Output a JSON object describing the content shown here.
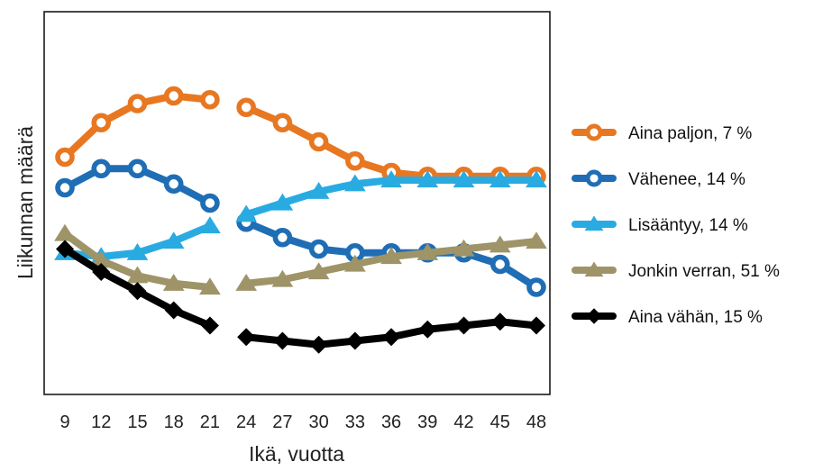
{
  "chart_data": {
    "type": "line",
    "xlabel": "Ikä, vuotta",
    "ylabel": "Liikunnan määrä",
    "x": [
      9,
      12,
      15,
      18,
      21,
      24,
      27,
      30,
      33,
      36,
      39,
      42,
      45,
      48
    ],
    "xlim": [
      9,
      48
    ],
    "ylim": [
      0,
      100
    ],
    "grid": false,
    "legend_position": "right",
    "series": [
      {
        "name": "Aina paljon, 7 %",
        "color": "#E87722",
        "marker": "ring",
        "values": [
          [
            9,
            62
          ],
          [
            12,
            71
          ],
          [
            15,
            76
          ],
          [
            18,
            78
          ],
          [
            21,
            77
          ],
          null,
          [
            24,
            75
          ],
          [
            27,
            71
          ],
          [
            30,
            66
          ],
          [
            33,
            61
          ],
          [
            36,
            58
          ],
          [
            39,
            57
          ],
          [
            42,
            57
          ],
          [
            45,
            57
          ],
          [
            48,
            57
          ]
        ]
      },
      {
        "name": "Vähenee, 14 %",
        "color": "#1F6EB5",
        "marker": "ring",
        "values": [
          [
            9,
            54
          ],
          [
            12,
            59
          ],
          [
            15,
            59
          ],
          [
            18,
            55
          ],
          [
            21,
            50
          ],
          null,
          [
            24,
            45
          ],
          [
            27,
            41
          ],
          [
            30,
            38
          ],
          [
            33,
            37
          ],
          [
            36,
            37
          ],
          [
            39,
            37
          ],
          [
            42,
            37
          ],
          [
            45,
            34
          ],
          [
            48,
            28
          ]
        ]
      },
      {
        "name": "Lisääntyy, 14 %",
        "color": "#29ABE2",
        "marker": "triangle",
        "values": [
          [
            9,
            37
          ],
          [
            12,
            36
          ],
          [
            15,
            37
          ],
          [
            18,
            40
          ],
          [
            21,
            44
          ],
          null,
          [
            24,
            47
          ],
          [
            27,
            50
          ],
          [
            30,
            53
          ],
          [
            33,
            55
          ],
          [
            36,
            56
          ],
          [
            39,
            56
          ],
          [
            42,
            56
          ],
          [
            45,
            56
          ],
          [
            48,
            56
          ]
        ]
      },
      {
        "name": "Jonkin verran, 51 %",
        "color": "#9E9468",
        "marker": "triangle",
        "values": [
          [
            9,
            42
          ],
          [
            12,
            35
          ],
          [
            15,
            31
          ],
          [
            18,
            29
          ],
          [
            21,
            28
          ],
          null,
          [
            24,
            29
          ],
          [
            27,
            30
          ],
          [
            30,
            32
          ],
          [
            33,
            34
          ],
          [
            36,
            36
          ],
          [
            39,
            37
          ],
          [
            42,
            38
          ],
          [
            45,
            39
          ],
          [
            48,
            40
          ]
        ]
      },
      {
        "name": "Aina vähän, 15 %",
        "color": "#000000",
        "marker": "diamond",
        "values": [
          [
            9,
            38
          ],
          [
            12,
            32
          ],
          [
            15,
            27
          ],
          [
            18,
            22
          ],
          [
            21,
            18
          ],
          null,
          [
            24,
            15
          ],
          [
            27,
            14
          ],
          [
            30,
            13
          ],
          [
            33,
            14
          ],
          [
            36,
            15
          ],
          [
            39,
            17
          ],
          [
            42,
            18
          ],
          [
            45,
            19
          ],
          [
            48,
            18
          ]
        ]
      }
    ]
  }
}
